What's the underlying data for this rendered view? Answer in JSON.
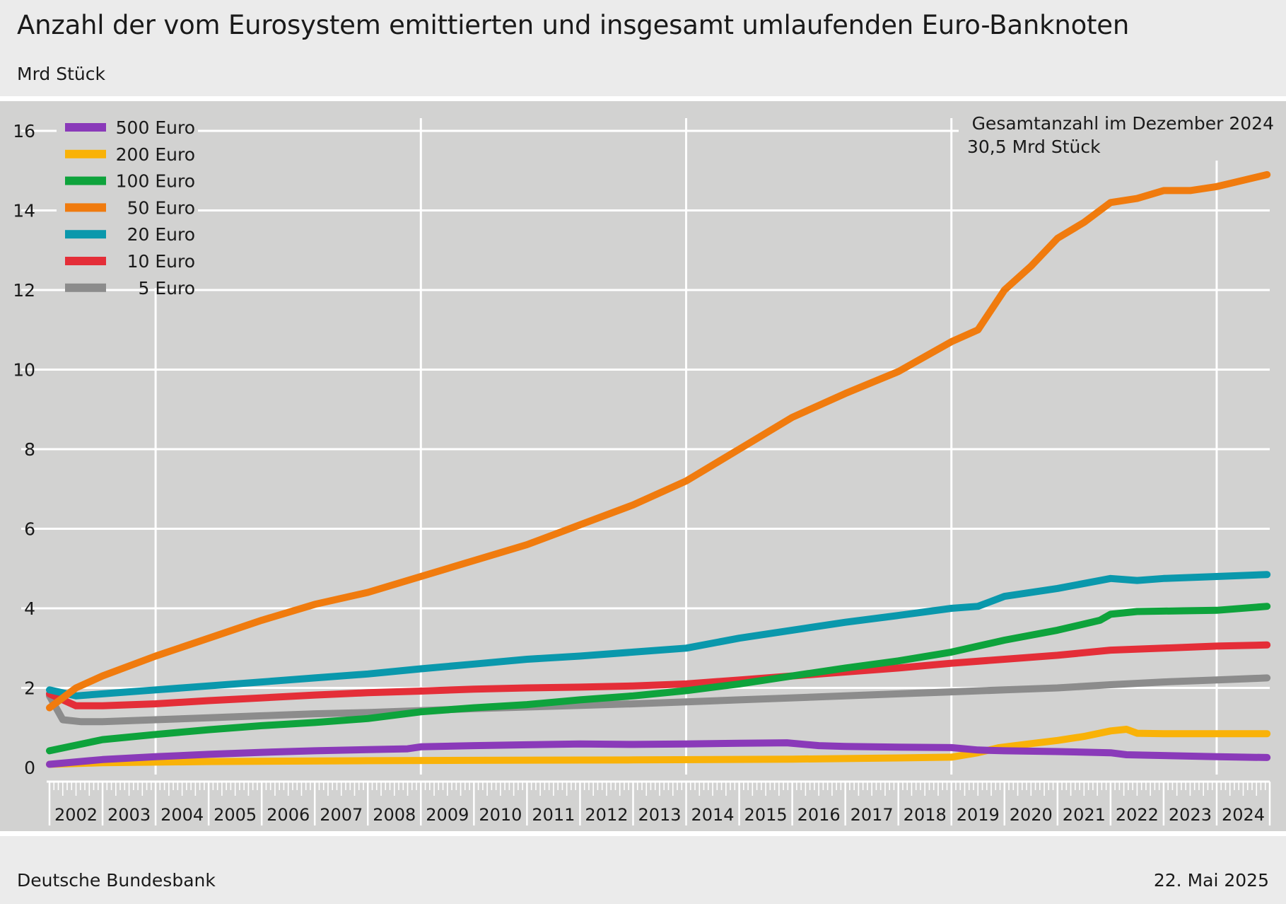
{
  "header": {
    "title": "Anzahl der vom Eurosystem emittierten und insgesamt umlaufenden Euro-Banknoten",
    "subtitle": "Mrd Stück"
  },
  "footer": {
    "source": "Deutsche Bundesbank",
    "date": "22. Mai 2025"
  },
  "annotation": {
    "line1": "Gesamtanzahl im  Dezember 2024",
    "line2": "30,5 Mrd Stück"
  },
  "chart_data": {
    "type": "line",
    "title": "Anzahl der vom Eurosystem emittierten und insgesamt umlaufenden Euro-Banknoten",
    "ylabel": "Mrd Stück",
    "xlabel": "",
    "ylim": [
      0,
      16
    ],
    "xlim": [
      2002.0,
      2025.0
    ],
    "yticks": [
      0,
      2,
      4,
      6,
      8,
      10,
      12,
      14,
      16
    ],
    "year_labels": [
      "2002",
      "2003",
      "2004",
      "2005",
      "2006",
      "2007",
      "2008",
      "2009",
      "2010",
      "2011",
      "2012",
      "2013",
      "2014",
      "2015",
      "2016",
      "2017",
      "2018",
      "2019",
      "2020",
      "2021",
      "2022",
      "2023",
      "2024"
    ],
    "grid": true,
    "legend_position": "top-left",
    "series": [
      {
        "name": "500 Euro",
        "color": "#8a3ab9",
        "points": [
          [
            2002.0,
            0.08
          ],
          [
            2003.0,
            0.2
          ],
          [
            2004.0,
            0.27
          ],
          [
            2005.0,
            0.33
          ],
          [
            2006.0,
            0.38
          ],
          [
            2007.0,
            0.42
          ],
          [
            2008.0,
            0.45
          ],
          [
            2008.75,
            0.47
          ],
          [
            2009.0,
            0.52
          ],
          [
            2010.0,
            0.55
          ],
          [
            2011.0,
            0.57
          ],
          [
            2012.0,
            0.59
          ],
          [
            2013.0,
            0.58
          ],
          [
            2014.0,
            0.59
          ],
          [
            2015.0,
            0.61
          ],
          [
            2015.9,
            0.62
          ],
          [
            2016.5,
            0.55
          ],
          [
            2017.0,
            0.53
          ],
          [
            2018.0,
            0.51
          ],
          [
            2019.0,
            0.5
          ],
          [
            2019.5,
            0.44
          ],
          [
            2020.0,
            0.42
          ],
          [
            2021.0,
            0.4
          ],
          [
            2022.0,
            0.37
          ],
          [
            2022.3,
            0.32
          ],
          [
            2023.0,
            0.3
          ],
          [
            2024.0,
            0.27
          ],
          [
            2024.95,
            0.25
          ]
        ]
      },
      {
        "name": "200 Euro",
        "color": "#f9b208",
        "points": [
          [
            2002.0,
            0.08
          ],
          [
            2003.0,
            0.12
          ],
          [
            2005.0,
            0.15
          ],
          [
            2008.0,
            0.17
          ],
          [
            2010.0,
            0.18
          ],
          [
            2013.0,
            0.19
          ],
          [
            2016.0,
            0.21
          ],
          [
            2018.0,
            0.24
          ],
          [
            2019.0,
            0.26
          ],
          [
            2019.5,
            0.37
          ],
          [
            2019.9,
            0.5
          ],
          [
            2020.5,
            0.6
          ],
          [
            2021.0,
            0.68
          ],
          [
            2021.5,
            0.78
          ],
          [
            2022.0,
            0.92
          ],
          [
            2022.3,
            0.96
          ],
          [
            2022.5,
            0.86
          ],
          [
            2023.0,
            0.85
          ],
          [
            2024.0,
            0.85
          ],
          [
            2024.95,
            0.85
          ]
        ]
      },
      {
        "name": "100 Euro",
        "color": "#0ea33c",
        "points": [
          [
            2002.0,
            0.42
          ],
          [
            2003.0,
            0.7
          ],
          [
            2004.0,
            0.83
          ],
          [
            2005.0,
            0.95
          ],
          [
            2006.0,
            1.05
          ],
          [
            2007.0,
            1.13
          ],
          [
            2008.0,
            1.23
          ],
          [
            2009.0,
            1.4
          ],
          [
            2010.0,
            1.5
          ],
          [
            2011.0,
            1.58
          ],
          [
            2012.0,
            1.7
          ],
          [
            2013.0,
            1.8
          ],
          [
            2014.0,
            1.93
          ],
          [
            2015.0,
            2.1
          ],
          [
            2016.0,
            2.3
          ],
          [
            2017.0,
            2.5
          ],
          [
            2018.0,
            2.68
          ],
          [
            2019.0,
            2.9
          ],
          [
            2020.0,
            3.2
          ],
          [
            2021.0,
            3.45
          ],
          [
            2021.8,
            3.7
          ],
          [
            2022.0,
            3.85
          ],
          [
            2022.5,
            3.92
          ],
          [
            2023.0,
            3.93
          ],
          [
            2024.0,
            3.95
          ],
          [
            2024.95,
            4.05
          ]
        ]
      },
      {
        "name": "50 Euro",
        "color": "#f07b0e",
        "points": [
          [
            2002.0,
            1.5
          ],
          [
            2002.5,
            2.0
          ],
          [
            2003.0,
            2.3
          ],
          [
            2004.0,
            2.8
          ],
          [
            2005.0,
            3.25
          ],
          [
            2006.0,
            3.7
          ],
          [
            2007.0,
            4.1
          ],
          [
            2008.0,
            4.4
          ],
          [
            2009.0,
            4.8
          ],
          [
            2010.0,
            5.2
          ],
          [
            2011.0,
            5.6
          ],
          [
            2012.0,
            6.1
          ],
          [
            2013.0,
            6.6
          ],
          [
            2014.0,
            7.2
          ],
          [
            2015.0,
            8.0
          ],
          [
            2016.0,
            8.8
          ],
          [
            2017.0,
            9.4
          ],
          [
            2018.0,
            9.95
          ],
          [
            2019.0,
            10.7
          ],
          [
            2019.5,
            11.0
          ],
          [
            2020.0,
            12.0
          ],
          [
            2020.5,
            12.6
          ],
          [
            2021.0,
            13.3
          ],
          [
            2021.5,
            13.7
          ],
          [
            2022.0,
            14.2
          ],
          [
            2022.5,
            14.3
          ],
          [
            2023.0,
            14.5
          ],
          [
            2023.5,
            14.5
          ],
          [
            2024.0,
            14.6
          ],
          [
            2024.95,
            14.9
          ]
        ]
      },
      {
        "name": "20 Euro",
        "color": "#0a98ac",
        "points": [
          [
            2002.0,
            1.95
          ],
          [
            2002.5,
            1.8
          ],
          [
            2003.0,
            1.85
          ],
          [
            2004.0,
            1.95
          ],
          [
            2005.0,
            2.05
          ],
          [
            2006.0,
            2.15
          ],
          [
            2007.0,
            2.25
          ],
          [
            2008.0,
            2.35
          ],
          [
            2009.0,
            2.48
          ],
          [
            2010.0,
            2.6
          ],
          [
            2011.0,
            2.72
          ],
          [
            2012.0,
            2.8
          ],
          [
            2013.0,
            2.9
          ],
          [
            2014.0,
            3.0
          ],
          [
            2015.0,
            3.25
          ],
          [
            2016.0,
            3.45
          ],
          [
            2017.0,
            3.65
          ],
          [
            2018.0,
            3.82
          ],
          [
            2019.0,
            4.0
          ],
          [
            2019.5,
            4.05
          ],
          [
            2020.0,
            4.3
          ],
          [
            2021.0,
            4.5
          ],
          [
            2022.0,
            4.75
          ],
          [
            2022.5,
            4.7
          ],
          [
            2023.0,
            4.75
          ],
          [
            2024.0,
            4.8
          ],
          [
            2024.95,
            4.85
          ]
        ]
      },
      {
        "name": "10 Euro",
        "color": "#e42e38",
        "points": [
          [
            2002.0,
            1.85
          ],
          [
            2002.5,
            1.55
          ],
          [
            2003.0,
            1.55
          ],
          [
            2004.0,
            1.6
          ],
          [
            2005.0,
            1.68
          ],
          [
            2006.0,
            1.75
          ],
          [
            2007.0,
            1.82
          ],
          [
            2008.0,
            1.88
          ],
          [
            2009.0,
            1.92
          ],
          [
            2010.0,
            1.97
          ],
          [
            2011.0,
            2.0
          ],
          [
            2012.0,
            2.02
          ],
          [
            2013.0,
            2.05
          ],
          [
            2014.0,
            2.1
          ],
          [
            2015.0,
            2.2
          ],
          [
            2016.0,
            2.3
          ],
          [
            2017.0,
            2.4
          ],
          [
            2018.0,
            2.5
          ],
          [
            2019.0,
            2.62
          ],
          [
            2020.0,
            2.72
          ],
          [
            2021.0,
            2.82
          ],
          [
            2022.0,
            2.95
          ],
          [
            2023.0,
            3.0
          ],
          [
            2024.0,
            3.05
          ],
          [
            2024.95,
            3.08
          ]
        ]
      },
      {
        "name": "5 Euro",
        "color": "#8c8c8c",
        "points": [
          [
            2002.0,
            1.8
          ],
          [
            2002.25,
            1.2
          ],
          [
            2002.6,
            1.15
          ],
          [
            2003.0,
            1.15
          ],
          [
            2004.0,
            1.2
          ],
          [
            2005.0,
            1.25
          ],
          [
            2006.0,
            1.3
          ],
          [
            2007.0,
            1.35
          ],
          [
            2008.0,
            1.38
          ],
          [
            2009.0,
            1.43
          ],
          [
            2010.0,
            1.48
          ],
          [
            2011.0,
            1.52
          ],
          [
            2012.0,
            1.56
          ],
          [
            2013.0,
            1.6
          ],
          [
            2014.0,
            1.65
          ],
          [
            2015.0,
            1.7
          ],
          [
            2016.0,
            1.75
          ],
          [
            2017.0,
            1.8
          ],
          [
            2018.0,
            1.85
          ],
          [
            2019.0,
            1.9
          ],
          [
            2020.0,
            1.95
          ],
          [
            2021.0,
            2.0
          ],
          [
            2022.0,
            2.08
          ],
          [
            2023.0,
            2.15
          ],
          [
            2024.0,
            2.2
          ],
          [
            2024.95,
            2.25
          ]
        ]
      }
    ]
  }
}
